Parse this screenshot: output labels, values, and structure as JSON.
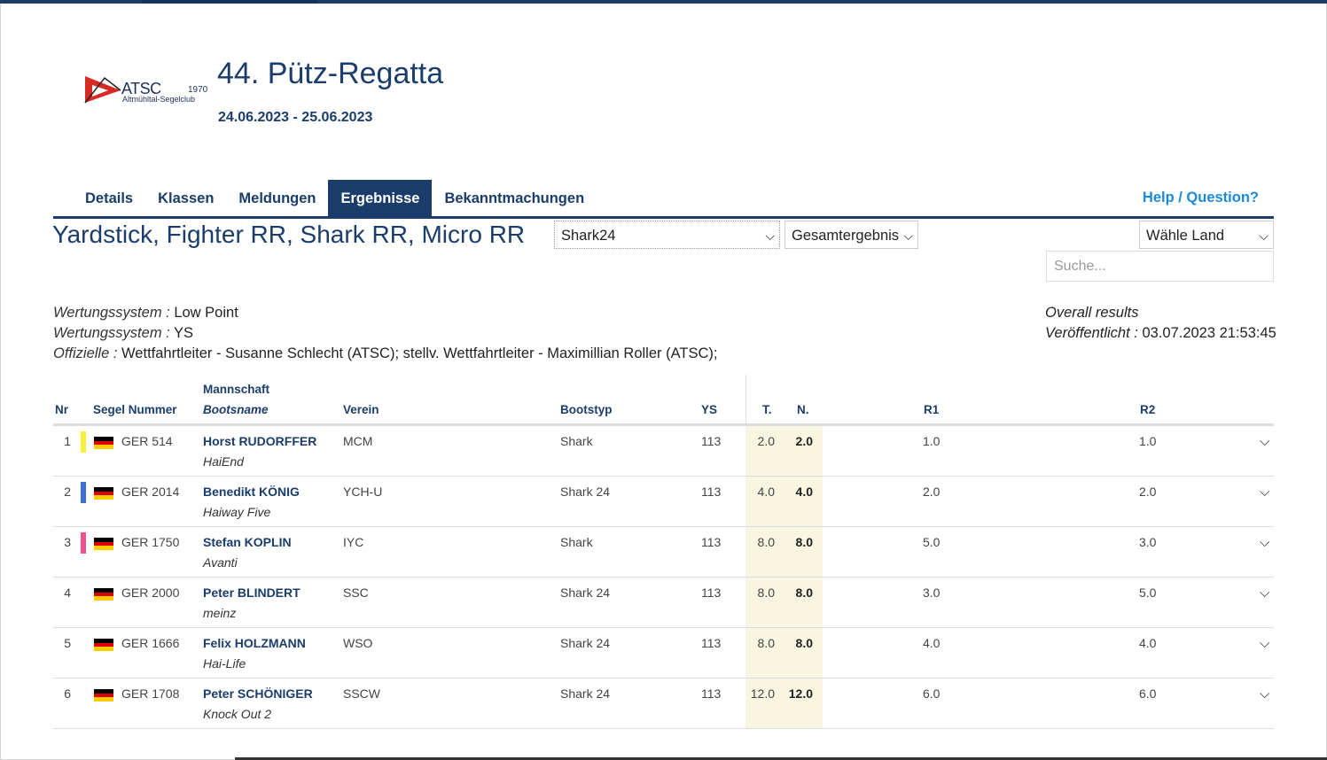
{
  "club_logo": {
    "text": "ATSC",
    "year": "1970",
    "subtitle": "Altmühltal-Segelclub"
  },
  "event": {
    "title": "44. Pütz-Regatta",
    "dates": "24.06.2023 - 25.06.2023"
  },
  "nav": {
    "tabs": [
      "Details",
      "Klassen",
      "Meldungen",
      "Ergebnisse",
      "Bekanntmachungen"
    ],
    "active": "Ergebnisse",
    "help": "Help / Question?"
  },
  "classes_title": "Yardstick, Fighter RR, Shark RR, Micro RR",
  "filters": {
    "class_select": "Shark24",
    "result_select": "Gesamtergebnis",
    "country_select": "Wähle Land",
    "search_placeholder": "Suche..."
  },
  "meta": {
    "scoring1_label": "Wertungssystem :",
    "scoring1_value": "Low Point",
    "scoring2_label": "Wertungssystem :",
    "scoring2_value": "YS",
    "officials_label": "Offizielle :",
    "officials_value": "Wettfahrtleiter - Susanne Schlecht (ATSC); stellv. Wettfahrtleiter - Maximillian Roller (ATSC);",
    "overall": "Overall results",
    "published_label": "Veröffentlicht :",
    "published_value": "03.07.2023 21:53:45"
  },
  "table": {
    "headers": {
      "nr": "Nr",
      "sail": "Segel Nummer",
      "crew": "Mannschaft",
      "boatname": "Bootsname",
      "club": "Verein",
      "boattype": "Bootstyp",
      "ys": "YS",
      "t": "T.",
      "n": "N.",
      "r1": "R1",
      "r2": "R2"
    },
    "rows": [
      {
        "nr": "1",
        "medal": "#f5ef3a",
        "sail": "GER 514",
        "skipper": "Horst RUDORFFER",
        "boat": "HaiEnd",
        "club": "MCM",
        "type": "Shark",
        "ys": "113",
        "t": "2.0",
        "n": "2.0",
        "r1": "1.0",
        "r2": "1.0"
      },
      {
        "nr": "2",
        "medal": "#3d6fd6",
        "sail": "GER 2014",
        "skipper": "Benedikt KÖNIG",
        "boat": "Haiway Five",
        "club": "YCH-U",
        "type": "Shark 24",
        "ys": "113",
        "t": "4.0",
        "n": "4.0",
        "r1": "2.0",
        "r2": "2.0"
      },
      {
        "nr": "3",
        "medal": "#f0508f",
        "sail": "GER 1750",
        "skipper": "Stefan KOPLIN",
        "boat": "Avanti",
        "club": "IYC",
        "type": "Shark",
        "ys": "113",
        "t": "8.0",
        "n": "8.0",
        "r1": "5.0",
        "r2": "3.0"
      },
      {
        "nr": "4",
        "medal": "",
        "sail": "GER 2000",
        "skipper": "Peter BLINDERT",
        "boat": "meinz",
        "club": "SSC",
        "type": "Shark 24",
        "ys": "113",
        "t": "8.0",
        "n": "8.0",
        "r1": "3.0",
        "r2": "5.0"
      },
      {
        "nr": "5",
        "medal": "",
        "sail": "GER 1666",
        "skipper": "Felix HOLZMANN",
        "boat": "Hai-Life",
        "club": "WSO",
        "type": "Shark 24",
        "ys": "113",
        "t": "8.0",
        "n": "8.0",
        "r1": "4.0",
        "r2": "4.0"
      },
      {
        "nr": "6",
        "medal": "",
        "sail": "GER 1708",
        "skipper": "Peter SCHÖNIGER",
        "boat": "Knock Out 2",
        "club": "SSCW",
        "type": "Shark 24",
        "ys": "113",
        "t": "12.0",
        "n": "12.0",
        "r1": "6.0",
        "r2": "6.0"
      }
    ]
  }
}
